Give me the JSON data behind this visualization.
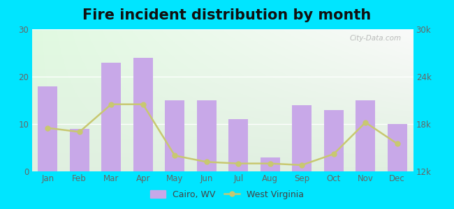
{
  "title": "Fire incident distribution by month",
  "months": [
    "Jan",
    "Feb",
    "Mar",
    "Apr",
    "May",
    "Jun",
    "Jul",
    "Aug",
    "Sep",
    "Oct",
    "Nov",
    "Dec"
  ],
  "cairo_wv": [
    18,
    9,
    23,
    24,
    15,
    15,
    11,
    3,
    14,
    13,
    15,
    10
  ],
  "west_virginia": [
    17500,
    17000,
    20500,
    20500,
    14000,
    13200,
    13000,
    13000,
    12800,
    14200,
    18200,
    15500
  ],
  "bar_color": "#c8a8e8",
  "line_color": "#c8c870",
  "bg_outer": "#00e5ff",
  "left_ylim": [
    0,
    30
  ],
  "right_ylim": [
    12000,
    30000
  ],
  "left_yticks": [
    0,
    10,
    20,
    30
  ],
  "right_yticks": [
    12000,
    18000,
    24000,
    30000
  ],
  "right_yticklabels": [
    "12k",
    "18k",
    "24k",
    "30k"
  ],
  "legend_cairo_label": "Cairo, WV",
  "legend_wv_label": "West Virginia",
  "watermark": "City-Data.com",
  "title_fontsize": 15,
  "tick_fontsize": 8.5,
  "legend_fontsize": 9
}
